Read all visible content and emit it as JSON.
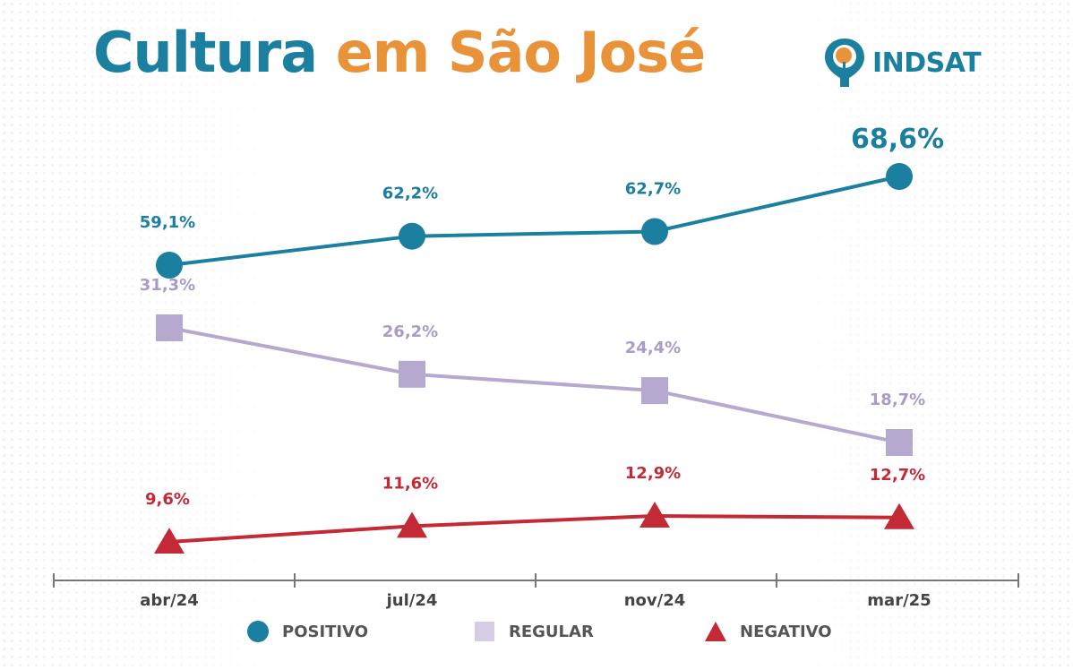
{
  "header": {
    "title_part1": "Cultura",
    "title_part2": "em São José",
    "logo_text": "INDSAT"
  },
  "colors": {
    "positivo": "#1b7fa0",
    "regular": "#b6a9cf",
    "negativo": "#c42a35",
    "title_accent": "#e8923a",
    "axis": "#777777"
  },
  "chart_data": {
    "type": "line",
    "categories": [
      "abr/24",
      "jul/24",
      "nov/24",
      "mar/25"
    ],
    "series": [
      {
        "name": "POSITIVO",
        "marker": "circle",
        "values": [
          59.1,
          62.2,
          62.7,
          68.6
        ],
        "labels": [
          "59,1%",
          "62,2%",
          "62,7%",
          "68,6%"
        ]
      },
      {
        "name": "REGULAR",
        "marker": "square",
        "values": [
          31.3,
          26.2,
          24.4,
          18.7
        ],
        "labels": [
          "31,3%",
          "26,2%",
          "24,4%",
          "18,7%"
        ]
      },
      {
        "name": "NEGATIVO",
        "marker": "triangle",
        "values": [
          9.6,
          11.6,
          12.9,
          12.7
        ],
        "labels": [
          "9,6%",
          "11,6%",
          "12,9%",
          "12,7%"
        ]
      }
    ],
    "legend_position": "bottom",
    "grid": false
  }
}
